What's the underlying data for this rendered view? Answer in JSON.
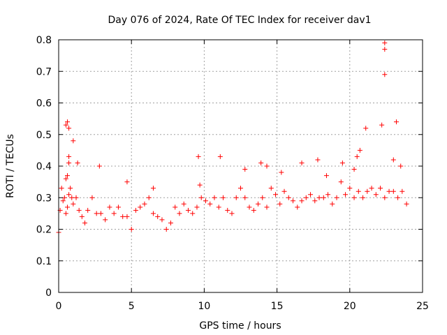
{
  "chart_data": {
    "type": "scatter",
    "title": "Day 076 of 2024, Rate Of TEC Index for receiver dav1",
    "xlabel": "GPS time / hours",
    "ylabel": "ROTI / TECUs",
    "xlim": [
      0,
      25
    ],
    "ylim": [
      0,
      0.8
    ],
    "xticks": [
      0,
      5,
      10,
      15,
      20,
      25
    ],
    "yticks": [
      0,
      0.1,
      0.2,
      0.3,
      0.4,
      0.5,
      0.6,
      0.7,
      0.8
    ],
    "grid": true,
    "marker": "+",
    "color": "#ff0000",
    "series": [
      {
        "x": [
          0.0,
          0.1,
          0.2,
          0.3,
          0.4,
          0.5,
          0.6,
          0.7,
          0.8,
          0.9,
          1.0,
          1.2,
          1.4,
          1.6,
          1.8,
          2.0,
          2.3,
          2.6,
          2.9,
          3.2,
          3.5,
          3.8,
          4.1,
          4.4,
          4.7,
          5.0,
          5.3,
          5.6,
          5.9,
          6.2,
          6.5,
          6.8,
          7.1,
          7.4,
          7.7,
          8.0,
          8.3,
          8.6,
          8.9,
          9.2,
          9.5,
          9.8,
          10.1,
          10.4,
          10.7,
          11.0,
          11.3,
          11.6,
          11.9,
          12.2,
          12.5,
          12.8,
          13.1,
          13.4,
          13.7,
          14.0,
          14.3,
          14.6,
          14.9,
          15.2,
          15.5,
          15.8,
          16.1,
          16.4,
          16.7,
          17.0,
          17.3,
          17.6,
          17.9,
          18.2,
          18.5,
          18.8,
          19.1,
          19.4,
          19.7,
          20.0,
          20.3,
          20.6,
          20.9,
          21.2,
          21.5,
          21.8,
          22.1,
          22.4,
          22.7,
          23.0,
          23.3,
          23.6,
          23.9,
          0.5,
          0.6,
          0.7,
          0.7,
          0.7,
          1.0,
          1.3,
          0.6,
          0.5,
          2.8,
          4.7,
          6.5,
          9.6,
          11.1,
          9.7,
          12.8,
          13.9,
          14.3,
          15.3,
          16.7,
          17.8,
          18.4,
          19.5,
          20.3,
          20.7,
          20.5,
          21.1,
          22.2,
          22.4,
          22.4,
          22.4,
          23.2,
          23.5,
          23.0
        ],
        "y": [
          0.19,
          0.26,
          0.33,
          0.29,
          0.3,
          0.25,
          0.27,
          0.31,
          0.33,
          0.3,
          0.28,
          0.3,
          0.26,
          0.24,
          0.22,
          0.26,
          0.3,
          0.25,
          0.25,
          0.23,
          0.27,
          0.25,
          0.27,
          0.24,
          0.24,
          0.2,
          0.26,
          0.27,
          0.28,
          0.3,
          0.25,
          0.24,
          0.23,
          0.2,
          0.22,
          0.27,
          0.25,
          0.28,
          0.26,
          0.25,
          0.27,
          0.3,
          0.29,
          0.28,
          0.3,
          0.27,
          0.3,
          0.26,
          0.25,
          0.3,
          0.33,
          0.3,
          0.27,
          0.26,
          0.28,
          0.3,
          0.27,
          0.33,
          0.31,
          0.28,
          0.32,
          0.3,
          0.29,
          0.27,
          0.29,
          0.3,
          0.31,
          0.29,
          0.3,
          0.3,
          0.31,
          0.28,
          0.3,
          0.35,
          0.31,
          0.33,
          0.3,
          0.32,
          0.3,
          0.32,
          0.33,
          0.31,
          0.33,
          0.3,
          0.32,
          0.32,
          0.3,
          0.32,
          0.28,
          0.53,
          0.54,
          0.52,
          0.43,
          0.41,
          0.48,
          0.41,
          0.37,
          0.36,
          0.4,
          0.35,
          0.33,
          0.43,
          0.43,
          0.34,
          0.39,
          0.41,
          0.4,
          0.38,
          0.41,
          0.42,
          0.37,
          0.41,
          0.39,
          0.45,
          0.43,
          0.52,
          0.53,
          0.79,
          0.77,
          0.69,
          0.54,
          0.4,
          0.42
        ]
      }
    ]
  }
}
